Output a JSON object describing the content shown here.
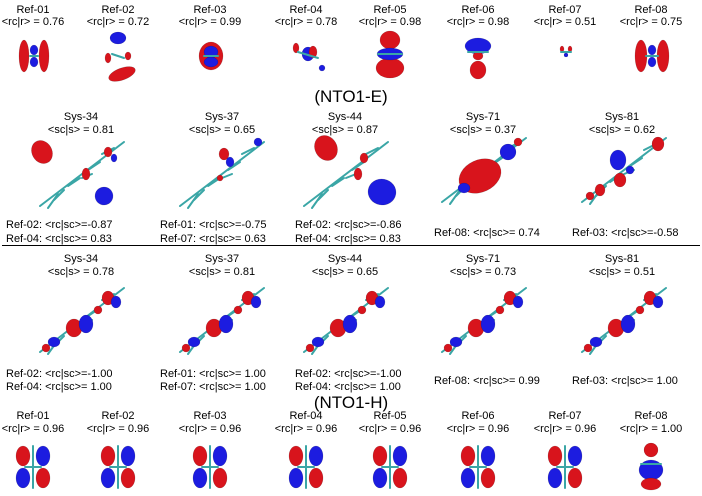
{
  "nto_e_label": "(NTO1-E)",
  "nto_h_label": "(NTO1-H)",
  "top_refs": [
    {
      "name": "Ref-01",
      "ov": "<rc|r> = 0.76"
    },
    {
      "name": "Ref-02",
      "ov": "<rc|r> = 0.72"
    },
    {
      "name": "Ref-03",
      "ov": "<rc|r> = 0.99"
    },
    {
      "name": "Ref-04",
      "ov": "<rc|r> = 0.78"
    },
    {
      "name": "Ref-05",
      "ov": "<rc|r> = 0.98"
    },
    {
      "name": "Ref-06",
      "ov": "<rc|r> = 0.98"
    },
    {
      "name": "Ref-07",
      "ov": "<rc|r> = 0.51"
    },
    {
      "name": "Ref-08",
      "ov": "<rc|r> = 0.75"
    }
  ],
  "sys_e": [
    {
      "name": "Sys-34",
      "ov": "<sc|s> = 0.81",
      "ref_a": "Ref-02: <rc|sc>=-0.87",
      "ref_b": "Ref-04: <rc|sc>= 0.83"
    },
    {
      "name": "Sys-37",
      "ov": "<sc|s> = 0.65",
      "ref_a": "Ref-01: <rc|sc>=-0.75",
      "ref_b": "Ref-07: <rc|sc>= 0.63"
    },
    {
      "name": "Sys-44",
      "ov": "<sc|s> = 0.87",
      "ref_a": "Ref-02: <rc|sc>=-0.86",
      "ref_b": "Ref-04: <rc|sc>= 0.83"
    },
    {
      "name": "Sys-71",
      "ov": "<sc|s> = 0.37",
      "ref_a": "Ref-08: <rc|sc>= 0.74",
      "ref_b": ""
    },
    {
      "name": "Sys-81",
      "ov": "<sc|s> = 0.62",
      "ref_a": "Ref-03: <rc|sc>=-0.58",
      "ref_b": ""
    }
  ],
  "sys_h": [
    {
      "name": "Sys-34",
      "ov": "<sc|s> = 0.78",
      "ref_a": "Ref-02: <rc|sc>=-1.00",
      "ref_b": "Ref-04: <rc|sc>= 1.00"
    },
    {
      "name": "Sys-37",
      "ov": "<sc|s> = 0.81",
      "ref_a": "Ref-01: <rc|sc>= 1.00",
      "ref_b": "Ref-07: <rc|sc>= 1.00"
    },
    {
      "name": "Sys-44",
      "ov": "<sc|s> = 0.65",
      "ref_a": "Ref-02: <rc|sc>=-1.00",
      "ref_b": "Ref-04: <rc|sc>= 1.00"
    },
    {
      "name": "Sys-71",
      "ov": "<sc|s> = 0.73",
      "ref_a": "Ref-08: <rc|sc>= 0.99",
      "ref_b": ""
    },
    {
      "name": "Sys-81",
      "ov": "<sc|s> = 0.51",
      "ref_a": "Ref-03: <rc|sc>= 1.00",
      "ref_b": ""
    }
  ],
  "bottom_refs": [
    {
      "name": "Ref-01",
      "ov": "<rc|r> = 0.96"
    },
    {
      "name": "Ref-02",
      "ov": "<rc|r> = 0.96"
    },
    {
      "name": "Ref-03",
      "ov": "<rc|r> = 0.96"
    },
    {
      "name": "Ref-04",
      "ov": "<rc|r> = 0.96"
    },
    {
      "name": "Ref-05",
      "ov": "<rc|r> = 0.96"
    },
    {
      "name": "Ref-06",
      "ov": "<rc|r> = 0.96"
    },
    {
      "name": "Ref-07",
      "ov": "<rc|r> = 0.96"
    },
    {
      "name": "Ref-08",
      "ov": "<rc|r> = 1.00"
    }
  ],
  "colors": {
    "positive_lobe": "#d8141c",
    "negative_lobe": "#1c1ce0",
    "bond": "#3aa6a6"
  }
}
